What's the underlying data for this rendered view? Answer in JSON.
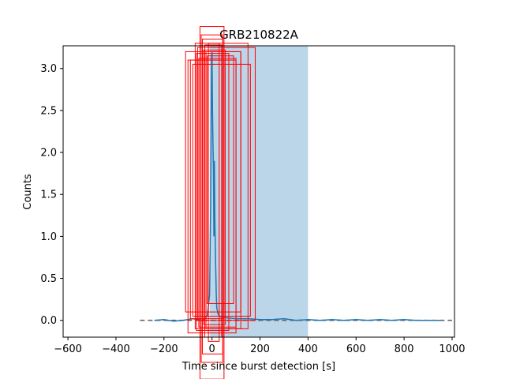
{
  "chart_data": {
    "type": "line",
    "title": "GRB210822A",
    "xlabel": "Time since burst detection [s]",
    "ylabel": "Counts",
    "xlim": [
      -620,
      1010
    ],
    "ylim": [
      -0.2,
      3.27
    ],
    "xticks": [
      -600,
      -400,
      -200,
      0,
      200,
      400,
      600,
      800,
      1000
    ],
    "xtick_labels": [
      "−600",
      "−400",
      "−200",
      "0",
      "200",
      "400",
      "600",
      "800",
      "1000"
    ],
    "yticks": [
      0.0,
      0.5,
      1.0,
      1.5,
      2.0,
      2.5,
      3.0
    ],
    "ytick_labels": [
      "0.0",
      "0.5",
      "1.0",
      "1.5",
      "2.0",
      "2.5",
      "3.0"
    ],
    "grid": false,
    "shaded_interval": {
      "x": [
        -10,
        400
      ],
      "color": "#bcd6e9"
    },
    "baseline": {
      "y": 0.0,
      "x": [
        -300,
        1000
      ],
      "style": "dashed",
      "color": "#666666"
    },
    "series": [
      {
        "color": "#1f77b4",
        "x": [
          -240,
          -200,
          -160,
          -120,
          -80,
          -40,
          -20,
          -10,
          -5,
          -2,
          0,
          2,
          4,
          6,
          8,
          10,
          12,
          15,
          18,
          20,
          25,
          30,
          40,
          60,
          100,
          150,
          200,
          250,
          300,
          350,
          400,
          450,
          500,
          550,
          600,
          650,
          700,
          750,
          800,
          850,
          900,
          950
        ],
        "y": [
          0.0,
          0.01,
          -0.01,
          0.0,
          0.02,
          0.0,
          0.05,
          0.3,
          1.5,
          3.1,
          3.2,
          2.5,
          2.1,
          1.8,
          1.0,
          1.9,
          1.2,
          0.7,
          0.3,
          0.15,
          0.08,
          0.05,
          0.04,
          0.03,
          0.02,
          0.02,
          0.01,
          0.01,
          0.02,
          0.0,
          0.01,
          0.0,
          0.01,
          0.0,
          0.01,
          0.0,
          0.01,
          0.0,
          0.01,
          0.0,
          0.0,
          0.0
        ]
      }
    ],
    "annotation_boxes": {
      "color": "#ff0000",
      "boxes": [
        {
          "x": [
            -50,
            50
          ],
          "y": [
            -0.7,
            3.5
          ]
        },
        {
          "x": [
            -45,
            45
          ],
          "y": [
            -0.5,
            3.4
          ]
        },
        {
          "x": [
            -40,
            45
          ],
          "y": [
            -0.4,
            3.35
          ]
        },
        {
          "x": [
            -70,
            150
          ],
          "y": [
            -0.1,
            3.3
          ]
        },
        {
          "x": [
            -60,
            180
          ],
          "y": [
            0.0,
            3.25
          ]
        },
        {
          "x": [
            -110,
            120
          ],
          "y": [
            0.1,
            3.2
          ]
        },
        {
          "x": [
            -100,
            100
          ],
          "y": [
            -0.15,
            3.1
          ]
        },
        {
          "x": [
            -30,
            40
          ],
          "y": [
            -0.2,
            3.28
          ]
        },
        {
          "x": [
            -20,
            90
          ],
          "y": [
            0.2,
            3.15
          ]
        },
        {
          "x": [
            -55,
            100
          ],
          "y": [
            -0.08,
            3.12
          ]
        },
        {
          "x": [
            -80,
            160
          ],
          "y": [
            0.05,
            3.05
          ]
        },
        {
          "x": [
            -35,
            55
          ],
          "y": [
            -0.05,
            3.22
          ]
        },
        {
          "x": [
            -65,
            70
          ],
          "y": [
            -0.12,
            3.18
          ]
        },
        {
          "x": [
            -15,
            30
          ],
          "y": [
            -0.25,
            3.3
          ]
        },
        {
          "x": [
            -90,
            50
          ],
          "y": [
            0.02,
            3.1
          ]
        },
        {
          "x": [
            -25,
            120
          ],
          "y": [
            -0.1,
            3.2
          ]
        }
      ]
    }
  }
}
